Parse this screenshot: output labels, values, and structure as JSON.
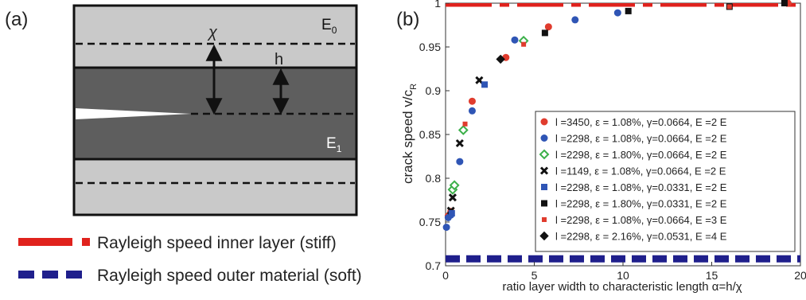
{
  "panel_a": {
    "label": "(a)",
    "e0_label": "E",
    "e0_sub": "0",
    "e1_label": "E",
    "e1_sub": "1",
    "chi_label": "χ",
    "h_label": "h"
  },
  "legend_bottom": [
    {
      "text": "Rayleigh speed inner layer (stiff)",
      "color": "#e0221d",
      "style": "dash-dot"
    },
    {
      "text": "Rayleigh speed outer material (soft)",
      "color": "#1f1f8c",
      "style": "dashed"
    }
  ],
  "chart_data": {
    "type": "scatter",
    "panel_label": "(b)",
    "xlabel": "ratio layer width to characteristic length α=h/χ",
    "ylabel": "crack speed v/c",
    "ylabel_sub": "R",
    "xlim": [
      0,
      20
    ],
    "ylim": [
      0.7,
      1.0
    ],
    "xticks": [
      0,
      5,
      10,
      15,
      20
    ],
    "yticks": [
      0.7,
      0.75,
      0.8,
      0.85,
      0.9,
      0.95,
      1
    ],
    "grid": false,
    "legend_position": "bottom-right",
    "reference_lines": [
      {
        "y": 1.0,
        "color": "#e0221d",
        "style": "dash-dot"
      },
      {
        "y": 0.708,
        "color": "#1f1f8c",
        "style": "dashed"
      }
    ],
    "series": [
      {
        "name": "l =3450, ε = 1.08%, γ=0.0664, E =2 E",
        "sub": [
          "x",
          "xx",
          "2",
          "1"
        ],
        "marker": "circle",
        "color": "#e03c2e",
        "x": [
          0.15,
          0.3,
          1.5,
          3.4,
          5.8,
          19.3
        ],
        "y": [
          0.757,
          0.762,
          0.888,
          0.938,
          0.973,
          1.0
        ]
      },
      {
        "name": "l =2298, ε = 1.08%, γ=0.0664, E =2 E",
        "sub": [
          "x",
          "xx",
          "2",
          "1"
        ],
        "marker": "circle",
        "color": "#2f55b5",
        "x": [
          0.05,
          0.15,
          0.3,
          0.8,
          1.5,
          3.9,
          7.3,
          9.7
        ],
        "y": [
          0.744,
          0.755,
          0.758,
          0.819,
          0.877,
          0.958,
          0.981,
          0.989
        ]
      },
      {
        "name": "l =2298, ε = 1.80%, γ=0.0664, E =2 E",
        "sub": [
          "x",
          "xx",
          "2",
          "1"
        ],
        "marker": "diamond",
        "color": "#3cb04a",
        "x": [
          0.4,
          0.5,
          1.0,
          4.4
        ],
        "y": [
          0.787,
          0.792,
          0.855,
          0.957
        ]
      },
      {
        "name": "l =1149, ε = 1.08%, γ=0.0664, E =2 E",
        "sub": [
          "x",
          "xx",
          "2",
          "1"
        ],
        "marker": "x",
        "color": "#111111",
        "x": [
          0.3,
          0.4,
          0.8,
          1.9
        ],
        "y": [
          0.763,
          0.778,
          0.84,
          0.912
        ]
      },
      {
        "name": "l =2298, ε = 1.08%, γ=0.0331, E =2 E",
        "sub": [
          "x",
          "xx",
          "2",
          "1"
        ],
        "marker": "square",
        "color": "#2f55b5",
        "x": [
          0.35,
          2.2
        ],
        "y": [
          0.76,
          0.907
        ]
      },
      {
        "name": "l =2298, ε = 1.80%, γ=0.0331, E =2 E",
        "sub": [
          "x",
          "xx",
          "2",
          "1"
        ],
        "marker": "square",
        "color": "#111111",
        "x": [
          5.6,
          10.3,
          16.0,
          19.1
        ],
        "y": [
          0.966,
          0.991,
          0.996,
          1.0
        ]
      },
      {
        "name": "l =2298, ε = 1.08%, γ=0.0664, E =3 E",
        "sub": [
          "x",
          "xx",
          "2",
          "1"
        ],
        "marker": "square-small",
        "color": "#e03c2e",
        "x": [
          1.1,
          4.4,
          16.0
        ],
        "y": [
          0.862,
          0.953,
          0.996
        ]
      },
      {
        "name": "l =2298, ε = 2.16%, γ=0.0531, E =4 E",
        "sub": [
          "x",
          "xx",
          "2",
          "1"
        ],
        "marker": "diamond",
        "color": "#111111",
        "x": [
          3.1
        ],
        "y": [
          0.936
        ]
      }
    ]
  }
}
